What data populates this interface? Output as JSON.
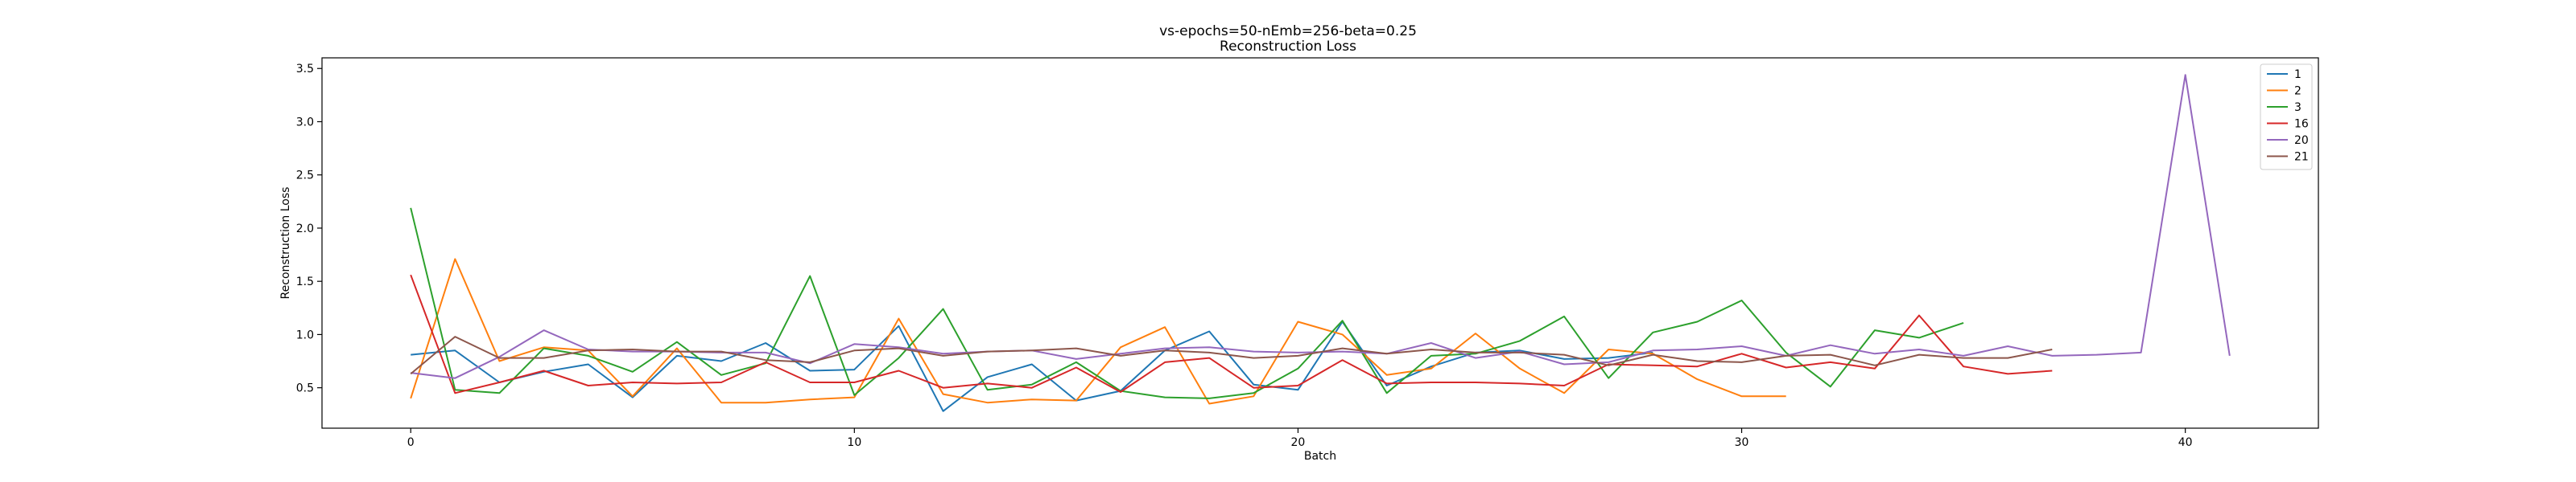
{
  "chart_data": {
    "type": "line",
    "title": "vs-epochs=50-nEmb=256-beta=0.25",
    "subtitle": "Reconstruction Loss",
    "xlabel": "Batch",
    "ylabel": "Reconstruction Loss",
    "xlim": [
      -2,
      43
    ],
    "ylim": [
      0.12,
      3.6
    ],
    "xticks": [
      0,
      10,
      20,
      30,
      40
    ],
    "yticks": [
      0.5,
      1.0,
      1.5,
      2.0,
      2.5,
      3.0,
      3.5
    ],
    "ytick_labels": [
      "0.5",
      "1.0",
      "1.5",
      "2.0",
      "2.5",
      "3.0",
      "3.5"
    ],
    "grid": false,
    "legend_position": "top-right",
    "series": [
      {
        "name": "1",
        "color": "#1f77b4",
        "values": [
          0.81,
          0.85,
          0.55,
          0.65,
          0.72,
          0.41,
          0.8,
          0.75,
          0.92,
          0.66,
          0.67,
          1.08,
          0.28,
          0.6,
          0.72,
          0.38,
          0.47,
          0.85,
          1.03,
          0.53,
          0.48,
          1.12,
          0.52,
          0.7,
          0.83,
          0.85,
          0.77,
          0.78,
          0.83
        ]
      },
      {
        "name": "2",
        "color": "#ff7f0e",
        "values": [
          0.4,
          1.71,
          0.75,
          0.88,
          0.85,
          0.42,
          0.87,
          0.36,
          0.36,
          0.39,
          0.41,
          1.15,
          0.44,
          0.36,
          0.39,
          0.38,
          0.88,
          1.07,
          0.35,
          0.42,
          1.12,
          1.0,
          0.62,
          0.68,
          1.01,
          0.68,
          0.45,
          0.86,
          0.82,
          0.58,
          0.42,
          0.42
        ]
      },
      {
        "name": "3",
        "color": "#2ca02c",
        "values": [
          2.19,
          0.48,
          0.45,
          0.87,
          0.8,
          0.65,
          0.93,
          0.62,
          0.73,
          1.55,
          0.43,
          0.78,
          1.24,
          0.48,
          0.53,
          0.74,
          0.47,
          0.41,
          0.4,
          0.45,
          0.68,
          1.13,
          0.45,
          0.8,
          0.82,
          0.94,
          1.17,
          0.59,
          1.02,
          1.12,
          1.32,
          0.83,
          0.51,
          1.04,
          0.97,
          1.11
        ]
      },
      {
        "name": "16",
        "color": "#d62728",
        "values": [
          1.56,
          0.45,
          0.55,
          0.66,
          0.52,
          0.55,
          0.54,
          0.55,
          0.74,
          0.55,
          0.55,
          0.66,
          0.5,
          0.54,
          0.5,
          0.69,
          0.46,
          0.74,
          0.78,
          0.5,
          0.52,
          0.76,
          0.54,
          0.55,
          0.55,
          0.54,
          0.52,
          0.72,
          0.71,
          0.7,
          0.82,
          0.69,
          0.74,
          0.68,
          1.18,
          0.7,
          0.63,
          0.66
        ]
      },
      {
        "name": "20",
        "color": "#9467bd",
        "values": [
          0.64,
          0.59,
          0.79,
          1.04,
          0.86,
          0.84,
          0.84,
          0.83,
          0.83,
          0.73,
          0.91,
          0.88,
          0.82,
          0.84,
          0.85,
          0.77,
          0.82,
          0.87,
          0.88,
          0.84,
          0.83,
          0.84,
          0.82,
          0.92,
          0.78,
          0.84,
          0.72,
          0.74,
          0.85,
          0.86,
          0.89,
          0.8,
          0.9,
          0.82,
          0.86,
          0.8,
          0.89,
          0.8,
          0.81,
          0.83,
          3.44,
          0.8
        ]
      },
      {
        "name": "21",
        "color": "#8c564b",
        "values": [
          0.63,
          0.98,
          0.78,
          0.78,
          0.85,
          0.86,
          0.84,
          0.84,
          0.76,
          0.74,
          0.85,
          0.87,
          0.8,
          0.84,
          0.85,
          0.87,
          0.8,
          0.85,
          0.83,
          0.78,
          0.8,
          0.87,
          0.82,
          0.86,
          0.83,
          0.83,
          0.81,
          0.71,
          0.81,
          0.75,
          0.74,
          0.8,
          0.81,
          0.71,
          0.81,
          0.78,
          0.78,
          0.86
        ]
      }
    ]
  }
}
